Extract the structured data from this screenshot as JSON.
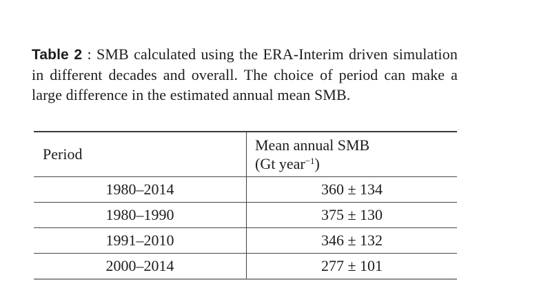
{
  "page": {
    "background": "#ffffff",
    "text_color": "#1d1d1d",
    "rule_color": "#3f3f3f"
  },
  "caption": {
    "label": "Table 2",
    "separator": " : ",
    "text": "SMB calculated using the ERA-Interim driven simulation in different decades and overall. The choice of period can make a large difference in the estimated annual mean SMB."
  },
  "table": {
    "header": {
      "period": "Period",
      "smb_line1": "Mean annual SMB",
      "smb_unit_prefix": "(Gt year",
      "smb_unit_sup": "−1",
      "smb_unit_suffix": ")"
    },
    "rows": [
      {
        "period": "1980–2014",
        "smb": "360 ± 134"
      },
      {
        "period": "1980–1990",
        "smb": "375 ± 130"
      },
      {
        "period": "1991–2010",
        "smb": "346 ± 132"
      },
      {
        "period": "2000–2014",
        "smb": "277 ± 101"
      }
    ]
  },
  "chart_data": {
    "type": "table",
    "title": "Table 2 : SMB calculated using the ERA-Interim driven simulation in different decades and overall.",
    "columns": [
      "Period",
      "Mean annual SMB (Gt year−1)"
    ],
    "rows": [
      [
        "1980–2014",
        "360 ± 134"
      ],
      [
        "1980–1990",
        "375 ± 130"
      ],
      [
        "1991–2010",
        "346 ± 132"
      ],
      [
        "2000–2014",
        "277 ± 101"
      ]
    ]
  }
}
